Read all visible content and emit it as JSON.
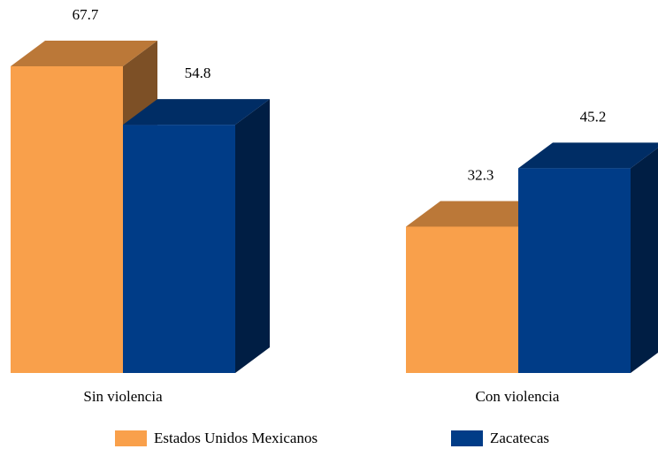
{
  "chart_data": {
    "type": "bar",
    "categories": [
      "Sin violencia",
      "Con violencia"
    ],
    "series": [
      {
        "name": "Estados Unidos Mexicanos",
        "values": [
          67.7,
          32.3
        ],
        "color": "#F9A04B"
      },
      {
        "name": "Zacatecas",
        "values": [
          54.8,
          45.2
        ],
        "color": "#003C87"
      }
    ],
    "ylim": [
      0,
      67.7
    ],
    "grid": false,
    "legend_position": "bottom",
    "three_d": true
  }
}
